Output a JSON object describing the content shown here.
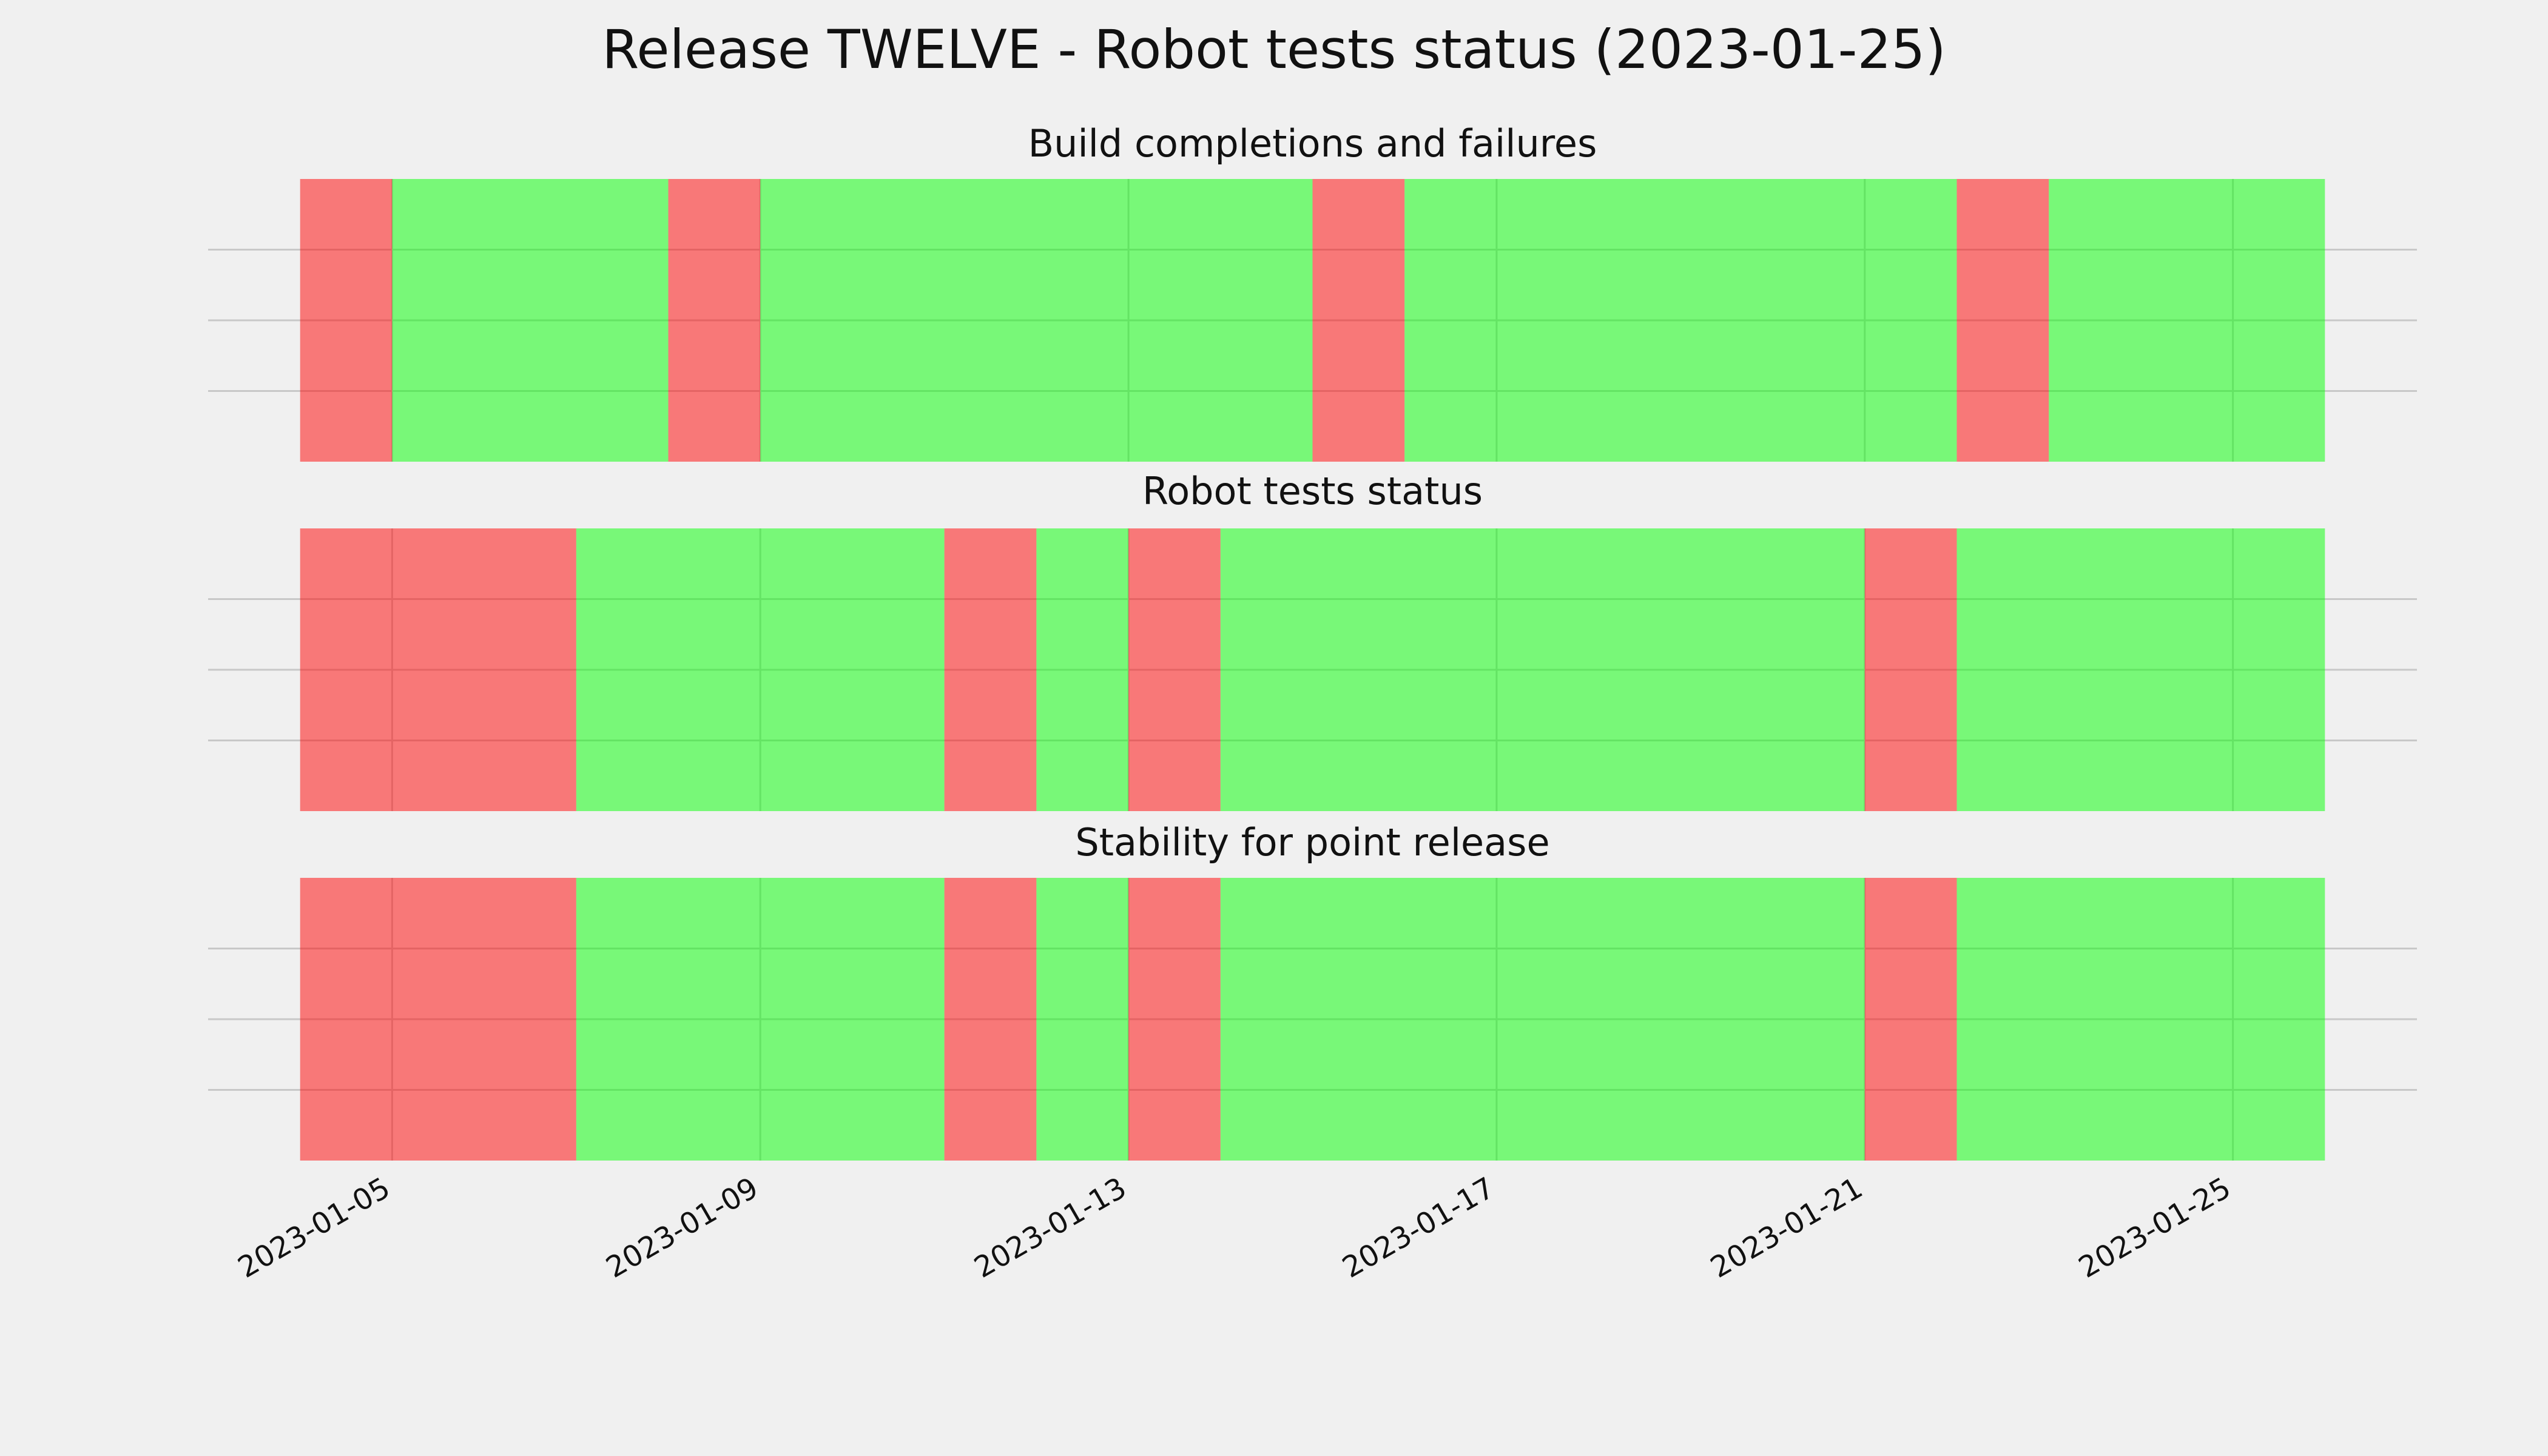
{
  "title": "Release TWELVE - Robot tests status (2023-01-25)",
  "chart_data": [
    {
      "type": "timeline",
      "title": "Build completions and failures",
      "segments": [
        {
          "start": "2023-01-04",
          "end": "2023-01-05",
          "color": "red"
        },
        {
          "start": "2023-01-05",
          "end": "2023-01-08",
          "color": "lime"
        },
        {
          "start": "2023-01-08",
          "end": "2023-01-09",
          "color": "red"
        },
        {
          "start": "2023-01-09",
          "end": "2023-01-15",
          "color": "lime"
        },
        {
          "start": "2023-01-15",
          "end": "2023-01-16",
          "color": "red"
        },
        {
          "start": "2023-01-16",
          "end": "2023-01-22",
          "color": "lime"
        },
        {
          "start": "2023-01-22",
          "end": "2023-01-23",
          "color": "red"
        },
        {
          "start": "2023-01-23",
          "end": "2023-01-26",
          "color": "lime"
        }
      ],
      "alpha": 0.5,
      "xlim": [
        "2023-01-03",
        "2023-01-27"
      ],
      "xticks": [
        "2023-01-05",
        "2023-01-09",
        "2023-01-13",
        "2023-01-17",
        "2023-01-21",
        "2023-01-25"
      ],
      "ylim": [
        0,
        4
      ],
      "yticks": [
        1,
        2,
        3
      ],
      "grid": true
    },
    {
      "type": "timeline",
      "title": "Robot tests status",
      "segments": [
        {
          "start": "2023-01-04",
          "end": "2023-01-07",
          "color": "red"
        },
        {
          "start": "2023-01-07",
          "end": "2023-01-11",
          "color": "lime"
        },
        {
          "start": "2023-01-11",
          "end": "2023-01-12",
          "color": "red"
        },
        {
          "start": "2023-01-12",
          "end": "2023-01-13",
          "color": "lime"
        },
        {
          "start": "2023-01-13",
          "end": "2023-01-14",
          "color": "red"
        },
        {
          "start": "2023-01-14",
          "end": "2023-01-21",
          "color": "lime"
        },
        {
          "start": "2023-01-21",
          "end": "2023-01-22",
          "color": "red"
        },
        {
          "start": "2023-01-22",
          "end": "2023-01-26",
          "color": "lime"
        }
      ],
      "alpha": 0.5,
      "xlim": [
        "2023-01-03",
        "2023-01-27"
      ],
      "xticks": [
        "2023-01-05",
        "2023-01-09",
        "2023-01-13",
        "2023-01-17",
        "2023-01-21",
        "2023-01-25"
      ],
      "ylim": [
        0,
        4
      ],
      "yticks": [
        1,
        2,
        3
      ],
      "grid": true
    },
    {
      "type": "timeline",
      "title": "Stability for point release",
      "segments": [
        {
          "start": "2023-01-04",
          "end": "2023-01-07",
          "color": "red"
        },
        {
          "start": "2023-01-07",
          "end": "2023-01-11",
          "color": "lime"
        },
        {
          "start": "2023-01-11",
          "end": "2023-01-12",
          "color": "red"
        },
        {
          "start": "2023-01-12",
          "end": "2023-01-13",
          "color": "lime"
        },
        {
          "start": "2023-01-13",
          "end": "2023-01-14",
          "color": "red"
        },
        {
          "start": "2023-01-14",
          "end": "2023-01-21",
          "color": "lime"
        },
        {
          "start": "2023-01-21",
          "end": "2023-01-22",
          "color": "red"
        },
        {
          "start": "2023-01-22",
          "end": "2023-01-26",
          "color": "lime"
        }
      ],
      "alpha": 0.5,
      "xlim": [
        "2023-01-03",
        "2023-01-27"
      ],
      "xticks": [
        "2023-01-05",
        "2023-01-09",
        "2023-01-13",
        "2023-01-17",
        "2023-01-21",
        "2023-01-25"
      ],
      "ylim": [
        0,
        4
      ],
      "yticks": [
        1,
        2,
        3
      ],
      "grid": true
    }
  ]
}
